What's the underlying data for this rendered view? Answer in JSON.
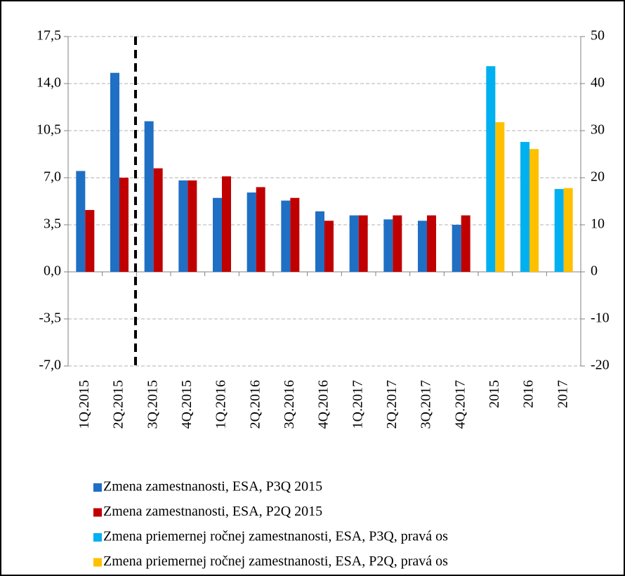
{
  "chart_data": {
    "type": "bar",
    "categories": [
      "1Q.2015",
      "2Q.2015",
      "3Q.2015",
      "4Q.2015",
      "1Q.2016",
      "2Q.2016",
      "3Q.2016",
      "4Q.2016",
      "1Q.2017",
      "2Q.2017",
      "3Q.2017",
      "4Q.2017",
      "2015",
      "2016",
      "2017"
    ],
    "series": [
      {
        "name": "Zmena zamestnanosti, ESA, P3Q 2015",
        "color": "#1f6fc4",
        "values": [
          7.5,
          14.8,
          11.2,
          6.8,
          5.5,
          5.9,
          5.3,
          4.5,
          4.2,
          3.9,
          3.8,
          3.5,
          null,
          null,
          null
        ]
      },
      {
        "name": "Zmena zamestnanosti, ESA, P2Q 2015",
        "color": "#c00000",
        "values": [
          4.6,
          7.0,
          7.7,
          6.8,
          7.1,
          6.3,
          5.5,
          3.8,
          4.2,
          4.2,
          4.2,
          4.2,
          null,
          null,
          null
        ]
      },
      {
        "name": "Zmena priemernej ročnej zamestnanosti, ESA, P3Q, pravá os",
        "color": "#00b0f0",
        "axis": "y2",
        "values": [
          null,
          null,
          null,
          null,
          null,
          null,
          null,
          null,
          null,
          null,
          null,
          null,
          43.7,
          27.6,
          17.6
        ]
      },
      {
        "name": "Zmena priemernej ročnej zamestnanosti, ESA, P2Q, pravá os",
        "color": "#ffc000",
        "axis": "y2",
        "values": [
          null,
          null,
          null,
          null,
          null,
          null,
          null,
          null,
          null,
          null,
          null,
          null,
          31.8,
          26.1,
          17.8
        ]
      }
    ],
    "ylim": [
      -7.0,
      17.5
    ],
    "yticks": [
      {
        "value": -7.0,
        "label": "-7,0"
      },
      {
        "value": -3.5,
        "label": "-3,5"
      },
      {
        "value": 0,
        "label": "0,0"
      },
      {
        "value": 3.5,
        "label": "3,5"
      },
      {
        "value": 7.0,
        "label": "7,0"
      },
      {
        "value": 10.5,
        "label": "10,5"
      },
      {
        "value": 14.0,
        "label": "14,0"
      },
      {
        "value": 17.5,
        "label": "17,5"
      }
    ],
    "y2lim": [
      -20,
      50
    ],
    "y2ticks": [
      -20,
      -10,
      0,
      10,
      20,
      30,
      40,
      50
    ],
    "grid": true
  }
}
